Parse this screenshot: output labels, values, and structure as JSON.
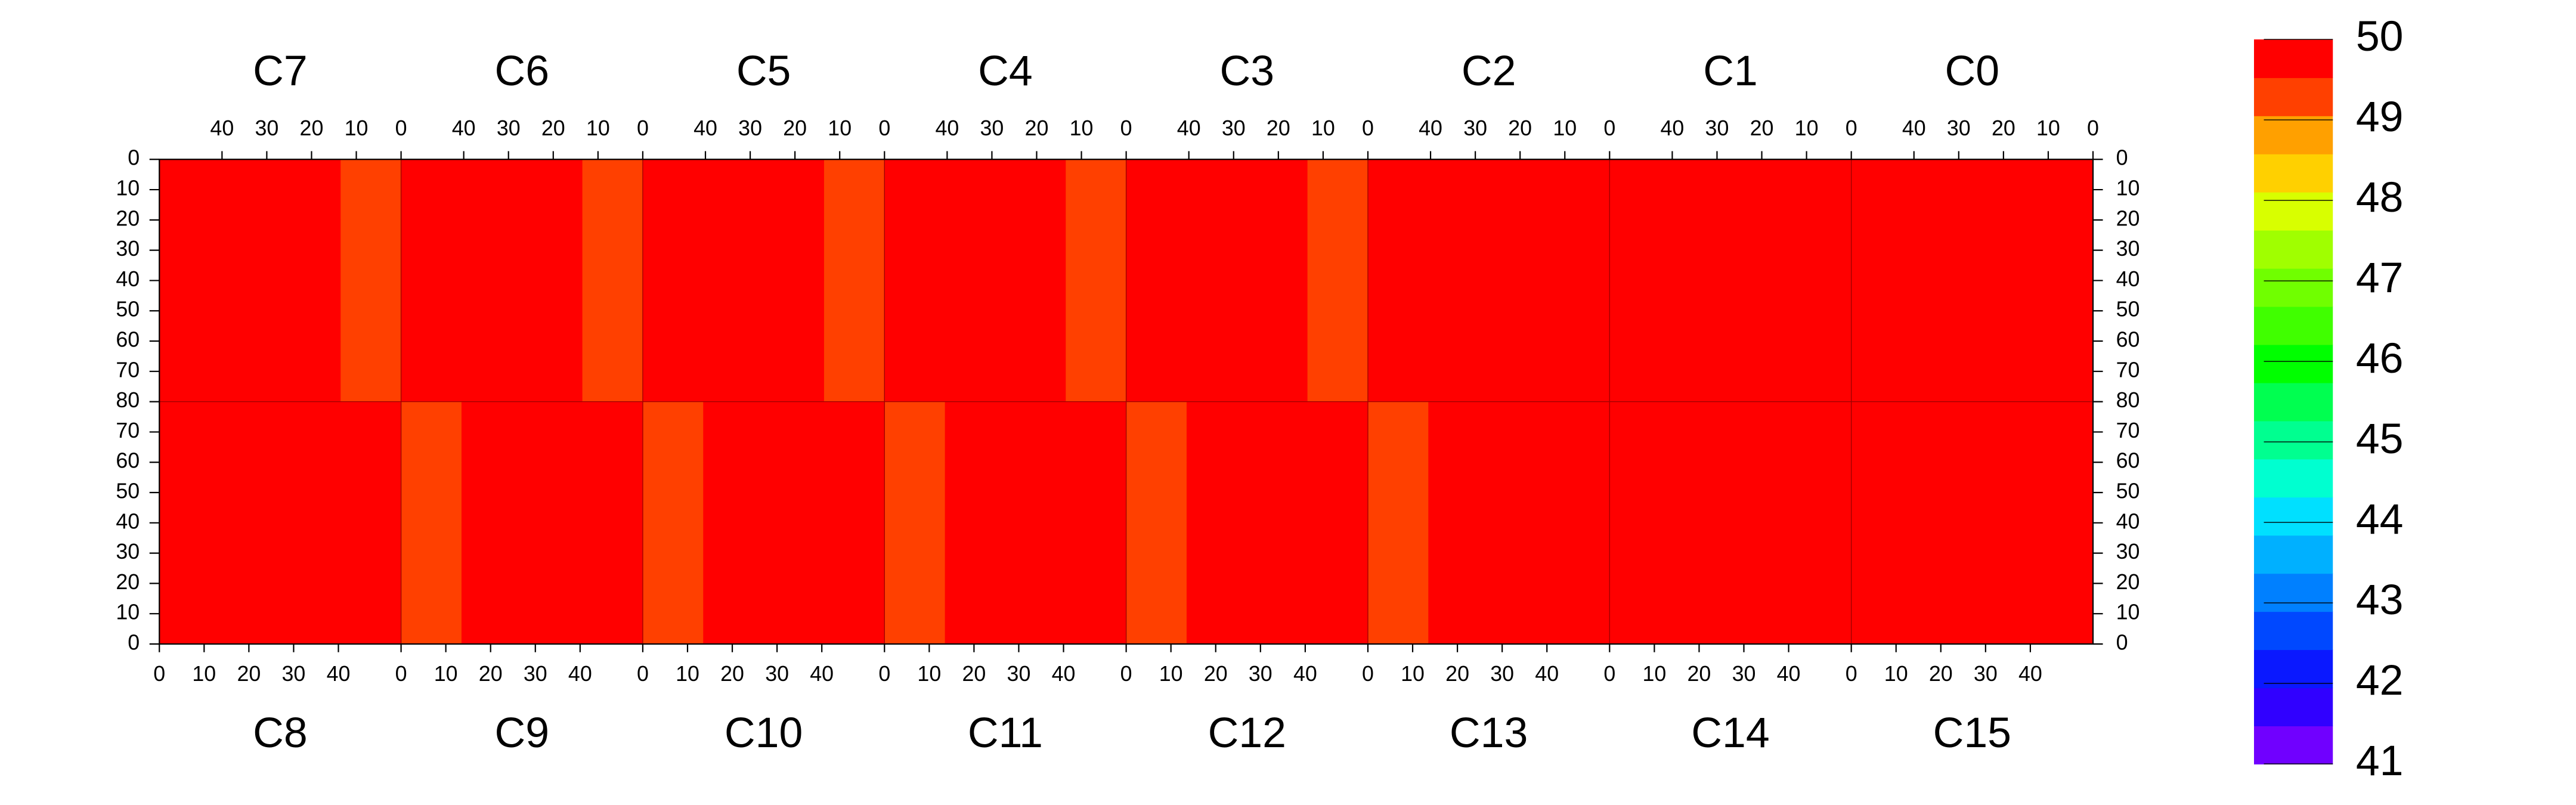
{
  "chart_data": {
    "type": "heatmap",
    "top_chips": [
      "C7",
      "C6",
      "C5",
      "C4",
      "C3",
      "C2",
      "C1",
      "C0"
    ],
    "bottom_chips": [
      "C8",
      "C9",
      "C10",
      "C11",
      "C12",
      "C13",
      "C14",
      "C15"
    ],
    "xlim": [
      0,
      54
    ],
    "xticks": [
      0,
      10,
      20,
      30,
      40
    ],
    "ylim": [
      0,
      80
    ],
    "yticks": [
      0,
      10,
      20,
      30,
      40,
      50,
      60,
      70,
      80
    ],
    "zlim": [
      41,
      50
    ],
    "zticks": [
      41,
      42,
      43,
      44,
      45,
      46,
      47,
      48,
      49,
      50
    ],
    "colors": [
      "#7000ff",
      "#3000ff",
      "#0a18ff",
      "#0048ff",
      "#0080ff",
      "#00b0ff",
      "#00e0ff",
      "#00ffd0",
      "#00ff90",
      "#00ff50",
      "#00ff00",
      "#40ff00",
      "#70ff00",
      "#a0ff00",
      "#d8ff00",
      "#ffd000",
      "#ffa000",
      "#ff4000",
      "#ff0000"
    ],
    "values": [
      [
        49.8,
        49.8,
        49.7,
        49.4,
        49.8,
        49.8,
        49.7,
        49.4,
        49.8,
        49.8,
        49.7,
        49.4,
        49.8,
        49.8,
        49.7,
        49.4,
        49.8,
        49.8,
        49.7,
        49.4,
        49.9,
        49.9,
        49.9,
        49.9,
        49.9,
        49.9,
        49.9,
        49.9,
        49.9,
        49.9,
        49.9,
        49.9
      ],
      [
        49.8,
        49.7,
        49.7,
        49.4,
        49.7,
        49.8,
        49.7,
        49.4,
        49.8,
        49.7,
        49.7,
        49.4,
        49.7,
        49.8,
        49.7,
        49.4,
        49.8,
        49.7,
        49.7,
        49.4,
        49.8,
        49.9,
        49.9,
        49.9,
        49.9,
        49.9,
        49.9,
        49.9,
        49.9,
        49.9,
        49.9,
        49.9
      ],
      [
        49.7,
        49.8,
        49.7,
        49.4,
        49.8,
        49.7,
        49.8,
        49.4,
        49.7,
        49.8,
        49.7,
        49.4,
        49.8,
        49.7,
        49.7,
        49.4,
        49.7,
        49.8,
        49.7,
        49.4,
        49.8,
        49.9,
        49.9,
        49.9,
        49.9,
        49.9,
        49.9,
        49.9,
        49.9,
        49.9,
        49.9,
        49.9
      ],
      [
        49.8,
        49.8,
        49.7,
        49.4,
        49.8,
        49.8,
        49.7,
        49.4,
        49.8,
        49.8,
        49.8,
        49.4,
        49.8,
        49.8,
        49.7,
        49.4,
        49.8,
        49.8,
        49.7,
        49.4,
        49.9,
        49.9,
        49.9,
        49.9,
        49.9,
        49.9,
        49.9,
        49.9,
        49.9,
        49.9,
        49.9,
        49.9
      ],
      [
        49.7,
        49.8,
        49.8,
        49.8,
        49.4,
        49.8,
        49.8,
        49.8,
        49.4,
        49.8,
        49.8,
        49.8,
        49.4,
        49.8,
        49.8,
        49.8,
        49.4,
        49.8,
        49.8,
        49.8,
        49.4,
        49.8,
        49.9,
        49.9,
        49.9,
        49.9,
        49.9,
        49.9,
        49.9,
        49.9,
        49.9,
        49.9
      ],
      [
        49.7,
        49.7,
        49.8,
        49.8,
        49.4,
        49.7,
        49.8,
        49.8,
        49.4,
        49.7,
        49.8,
        49.8,
        49.4,
        49.7,
        49.8,
        49.7,
        49.4,
        49.8,
        49.8,
        49.8,
        49.4,
        49.8,
        49.9,
        49.9,
        49.9,
        49.9,
        49.9,
        49.9,
        49.9,
        49.9,
        49.9,
        49.9
      ],
      [
        49.8,
        49.7,
        49.8,
        49.7,
        49.4,
        49.8,
        49.7,
        49.8,
        49.4,
        49.8,
        49.7,
        49.8,
        49.4,
        49.8,
        49.7,
        49.8,
        49.4,
        49.8,
        49.7,
        49.8,
        49.4,
        49.8,
        49.9,
        49.9,
        49.9,
        49.9,
        49.9,
        49.9,
        49.9,
        49.9,
        49.9,
        49.9
      ],
      [
        49.7,
        49.8,
        49.8,
        49.8,
        49.4,
        49.8,
        49.8,
        49.8,
        49.4,
        49.8,
        49.8,
        49.8,
        49.4,
        49.8,
        49.8,
        49.8,
        49.4,
        49.8,
        49.8,
        49.8,
        49.4,
        49.8,
        49.9,
        49.9,
        49.9,
        49.9,
        49.9,
        49.9,
        49.9,
        49.9,
        49.9,
        49.9
      ]
    ]
  }
}
